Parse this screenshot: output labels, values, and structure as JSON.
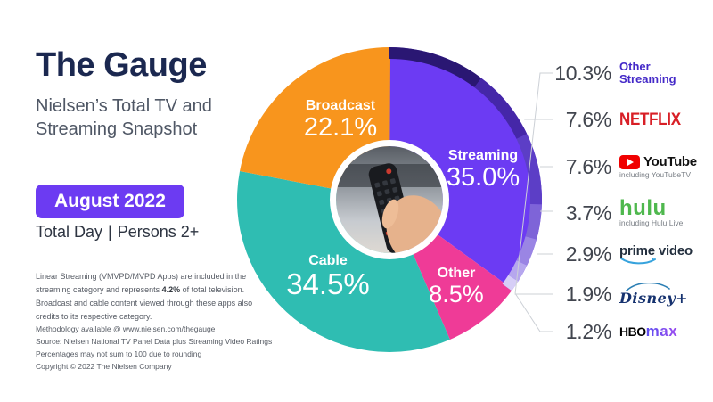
{
  "header": {
    "title": "The Gauge",
    "subtitle_line1": "Nielsen’s Total TV and",
    "subtitle_line2": "Streaming Snapshot"
  },
  "period": {
    "badge": "August 2022",
    "scope_left": "Total Day",
    "scope_right": "Persons 2+"
  },
  "note": {
    "pre": "Linear Streaming (VMVPD/MVPD Apps) are included in the streaming category and represents ",
    "bold": "4.2%",
    "post": " of total television. Broadcast and cable content viewed through these apps also credits to its respective category."
  },
  "footer": {
    "lines": [
      "Methodology available @ www.nielsen.com/thegauge",
      "Source: Nielsen National TV Panel Data plus Streaming Video Ratings",
      "Percentages may not sum to 100 due to rounding",
      "Copyright © 2022 The Nielsen Company"
    ]
  },
  "colors": {
    "title_navy": "#1b2850",
    "badge_purple": "#6c3bf2",
    "leader_line": "#ccd0d6",
    "netflix_red": "#d81f26",
    "hulu_green": "#4fb84e",
    "prime_navy": "#232f3e",
    "prime_smile_blue": "#37a3dd",
    "disney_blue": "#16326f",
    "hbo_max_purple": "#7b42f0",
    "other_streaming_indigo": "#4429c8"
  },
  "chart_data": {
    "type": "pie",
    "title": "The Gauge — Nielsen’s Total TV and Streaming Snapshot (August 2022)",
    "start": "12 o'clock, clockwise",
    "units": "percent share",
    "slices": [
      {
        "label": "Streaming",
        "value": 35.0,
        "display": "35.0%",
        "color": "#6c3bf3"
      },
      {
        "label": "Other",
        "value": 8.5,
        "display": "8.5%",
        "color": "#ef3b97"
      },
      {
        "label": "Cable",
        "value": 34.5,
        "display": "34.5%",
        "color": "#2fbdb2"
      },
      {
        "label": "Broadcast",
        "value": 22.1,
        "display": "22.1%",
        "color": "#f8951d"
      }
    ],
    "streaming_breakdown": [
      {
        "label": "Other Streaming",
        "value": 10.3,
        "display": "10.3%",
        "rim_color": "#2a1773"
      },
      {
        "label": "Netflix",
        "value": 7.6,
        "display": "7.6%",
        "rim_color": "#4527a8"
      },
      {
        "label": "YouTube",
        "value": 7.6,
        "display": "7.6%",
        "rim_color": "#5c3ec6",
        "note": "including YouTubeTV"
      },
      {
        "label": "Hulu",
        "value": 3.7,
        "display": "3.7%",
        "rim_color": "#7e64d8",
        "note": "including Hulu Live"
      },
      {
        "label": "Prime Video",
        "value": 2.9,
        "display": "2.9%",
        "rim_color": "#9a85e4"
      },
      {
        "label": "Disney+",
        "value": 1.9,
        "display": "1.9%",
        "rim_color": "#b6a7ee"
      },
      {
        "label": "HBO Max",
        "value": 1.2,
        "display": "1.2%",
        "rim_color": "#d6cef7",
        "parts": [
          "HBO",
          "max"
        ]
      }
    ]
  }
}
